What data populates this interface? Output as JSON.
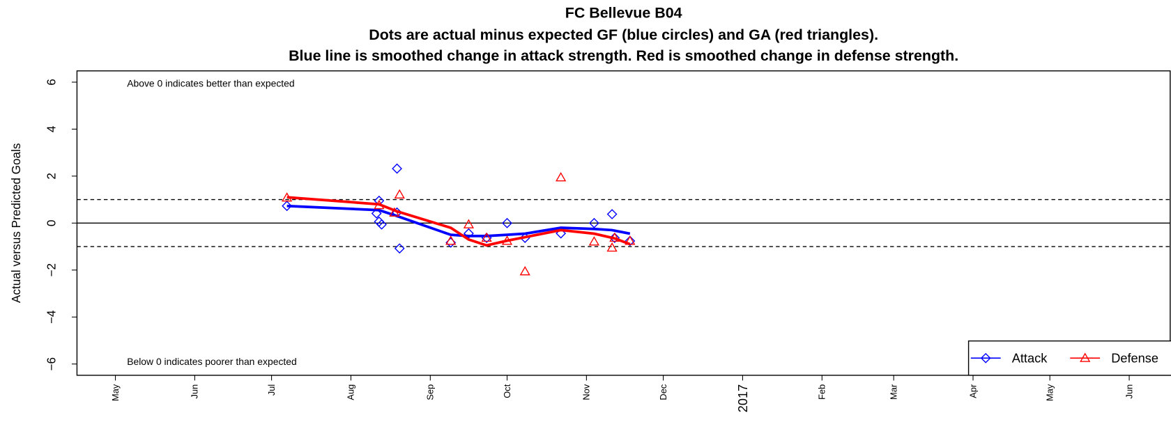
{
  "chart_data": {
    "type": "scatter-smooth",
    "title": "FC Bellevue B04",
    "subtitle": [
      "Dots are actual minus expected GF (blue circles) and GA (red triangles).",
      "Blue line is smoothed change in attack strength. Red is smoothed change in defense strength."
    ],
    "y_label": "Actual versus Predicted Goals",
    "annotations": [
      "Above 0 indicates better than expected",
      "Below 0 indicates poorer than expected"
    ],
    "xlim": [
      "2016-04-16",
      "2017-06-17"
    ],
    "xticks": [
      {
        "value": "2016-05-01",
        "label": "May"
      },
      {
        "value": "2016-06-01",
        "label": "Jun"
      },
      {
        "value": "2016-07-01",
        "label": "Jul"
      },
      {
        "value": "2016-08-01",
        "label": "Aug"
      },
      {
        "value": "2016-09-01",
        "label": "Sep"
      },
      {
        "value": "2016-10-01",
        "label": "Oct"
      },
      {
        "value": "2016-11-01",
        "label": "Nov"
      },
      {
        "value": "2016-12-01",
        "label": "Dec"
      },
      {
        "value": "2017-01-01",
        "label": "2017"
      },
      {
        "value": "2017-02-01",
        "label": "Feb"
      },
      {
        "value": "2017-03-01",
        "label": "Mar"
      },
      {
        "value": "2017-04-01",
        "label": "Apr"
      },
      {
        "value": "2017-05-01",
        "label": "May"
      },
      {
        "value": "2017-06-01",
        "label": "Jun"
      }
    ],
    "ylim": [
      -6.48,
      6.48
    ],
    "yticks": [
      {
        "value": -6,
        "label": "−6"
      },
      {
        "value": -4,
        "label": "−4"
      },
      {
        "value": -2,
        "label": "−2"
      },
      0,
      2,
      4,
      6
    ],
    "hlines": [
      {
        "value": 1,
        "style": "dashed"
      },
      {
        "value": 0,
        "style": "solid"
      },
      {
        "value": -1,
        "style": "dashed"
      }
    ],
    "legend": "bottom-right",
    "series": [
      {
        "name": "Attack",
        "color": "#0000ff",
        "marker": "diamond",
        "x": [
          "2016-07-07",
          "2016-08-11",
          "2016-08-12",
          "2016-08-12",
          "2016-08-13",
          "2016-08-19",
          "2016-08-19",
          "2016-08-20",
          "2016-09-09",
          "2016-09-16",
          "2016-09-23",
          "2016-10-01",
          "2016-10-08",
          "2016-10-22",
          "2016-11-04",
          "2016-11-11",
          "2016-11-12",
          "2016-11-18"
        ],
        "values": [
          0.73,
          0.41,
          0.95,
          0.06,
          -0.06,
          2.32,
          0.45,
          -1.08,
          -0.83,
          -0.44,
          -0.63,
          0.0,
          -0.63,
          -0.44,
          0.0,
          0.38,
          -0.63,
          -0.76
        ],
        "smooth_x": [
          "2016-07-07",
          "2016-08-12",
          "2016-08-19",
          "2016-09-09",
          "2016-09-16",
          "2016-09-23",
          "2016-10-01",
          "2016-10-08",
          "2016-10-22",
          "2016-11-04",
          "2016-11-11",
          "2016-11-18"
        ],
        "smooth_values": [
          0.73,
          0.55,
          0.3,
          -0.5,
          -0.55,
          -0.55,
          -0.5,
          -0.45,
          -0.2,
          -0.25,
          -0.3,
          -0.45
        ]
      },
      {
        "name": "Defense",
        "color": "#ff0000",
        "marker": "triangle",
        "x": [
          "2016-07-07",
          "2016-08-12",
          "2016-08-18",
          "2016-08-20",
          "2016-09-09",
          "2016-09-16",
          "2016-09-23",
          "2016-10-01",
          "2016-10-08",
          "2016-10-22",
          "2016-11-04",
          "2016-11-11",
          "2016-11-12",
          "2016-11-18"
        ],
        "values": [
          1.08,
          0.76,
          0.44,
          1.21,
          -0.76,
          -0.06,
          -0.63,
          -0.76,
          -2.06,
          1.94,
          -0.79,
          -1.05,
          -0.63,
          -0.76
        ],
        "smooth_x": [
          "2016-07-07",
          "2016-08-12",
          "2016-08-19",
          "2016-09-09",
          "2016-09-16",
          "2016-09-23",
          "2016-10-01",
          "2016-10-08",
          "2016-10-22",
          "2016-11-04",
          "2016-11-12",
          "2016-11-18"
        ],
        "smooth_values": [
          1.1,
          0.8,
          0.5,
          -0.2,
          -0.7,
          -0.95,
          -0.75,
          -0.6,
          -0.3,
          -0.45,
          -0.65,
          -0.9
        ]
      }
    ]
  }
}
